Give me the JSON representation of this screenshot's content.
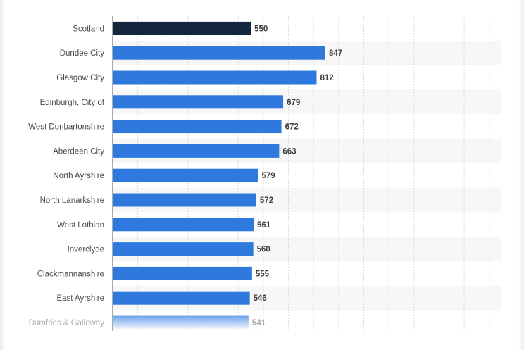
{
  "chart_data": {
    "type": "bar",
    "orientation": "horizontal",
    "categories": [
      "Scotland",
      "Dundee City",
      "Glasgow City",
      "Edinburgh, City of",
      "West Dunbartonshire",
      "Aberdeen City",
      "North Ayrshire",
      "North Lanarkshire",
      "West Lothian",
      "Inverclyde",
      "Clackmannanshire",
      "East Ayrshire",
      "Dumfries & Galloway"
    ],
    "values": [
      550,
      847,
      812,
      679,
      672,
      663,
      579,
      572,
      561,
      560,
      555,
      546,
      541
    ],
    "value_labels": [
      "550",
      "847",
      "812",
      "679",
      "672",
      "663",
      "579",
      "572",
      "561",
      "560",
      "555",
      "546",
      "541"
    ],
    "xlim": [
      0,
      1000
    ],
    "grid": true,
    "colors": {
      "highlight": "#13263d",
      "bar": "#2f78de",
      "faded_bar_top": "#6fa3ec",
      "faded_bar_bottom": "#f4f8ff",
      "grid": "#d8d8d8",
      "band": "#f7f7f7",
      "axis": "#555555"
    }
  }
}
